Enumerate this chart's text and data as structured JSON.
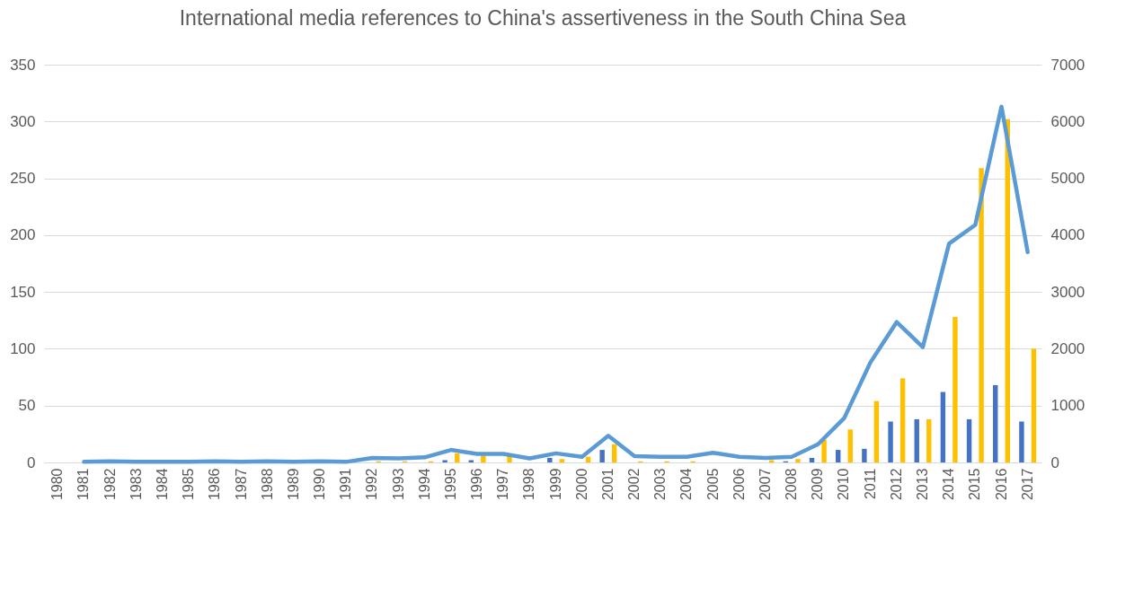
{
  "chart_data": {
    "type": "bar",
    "title": "International media references to China's assertiveness in the South China Sea",
    "categories": [
      "1980",
      "1981",
      "1982",
      "1983",
      "1984",
      "1985",
      "1986",
      "1987",
      "1988",
      "1989",
      "1990",
      "1991",
      "1992",
      "1993",
      "1994",
      "1995",
      "1996",
      "1997",
      "1998",
      "1999",
      "2000",
      "2001",
      "2002",
      "2003",
      "2004",
      "2005",
      "2006",
      "2007",
      "2008",
      "2009",
      "2010",
      "2011",
      "2012",
      "2013",
      "2014",
      "2015",
      "2016",
      "2017"
    ],
    "series": [
      {
        "color": "#4472c4",
        "values": [
          0,
          0,
          0,
          0,
          0,
          0,
          null,
          0,
          0,
          0,
          0,
          0,
          0,
          0,
          0,
          2,
          2,
          0,
          0,
          4,
          0,
          11,
          0,
          0,
          0,
          0,
          0,
          0,
          1,
          4,
          11,
          12,
          36,
          38,
          62,
          38,
          68,
          36
        ]
      },
      {
        "color": "#ffc000",
        "values": [
          0,
          0,
          0,
          0,
          0,
          0,
          0,
          0,
          0,
          0,
          0,
          0,
          1,
          1,
          1,
          8,
          6,
          6,
          0,
          3,
          5,
          16,
          1,
          1,
          1,
          0,
          0,
          2,
          3,
          20,
          29,
          54,
          74,
          38,
          128,
          259,
          302,
          100
        ]
      },
      {
        "type": "line",
        "axis": "y2",
        "color": "#5b9bd5",
        "values": [
          null,
          10,
          20,
          10,
          10,
          10,
          20,
          10,
          20,
          10,
          20,
          10,
          80,
          70,
          90,
          220,
          150,
          150,
          70,
          160,
          100,
          470,
          110,
          100,
          100,
          170,
          100,
          80,
          100,
          320,
          780,
          1760,
          2470,
          2030,
          3850,
          4180,
          6260,
          3700
        ]
      }
    ],
    "ylim": [
      0,
      350
    ],
    "yticks": [
      0,
      50,
      100,
      150,
      200,
      250,
      300,
      350
    ],
    "y2lim": [
      0,
      7000
    ],
    "y2ticks": [
      0,
      1000,
      2000,
      3000,
      4000,
      5000,
      6000,
      7000
    ],
    "grid": "y"
  }
}
